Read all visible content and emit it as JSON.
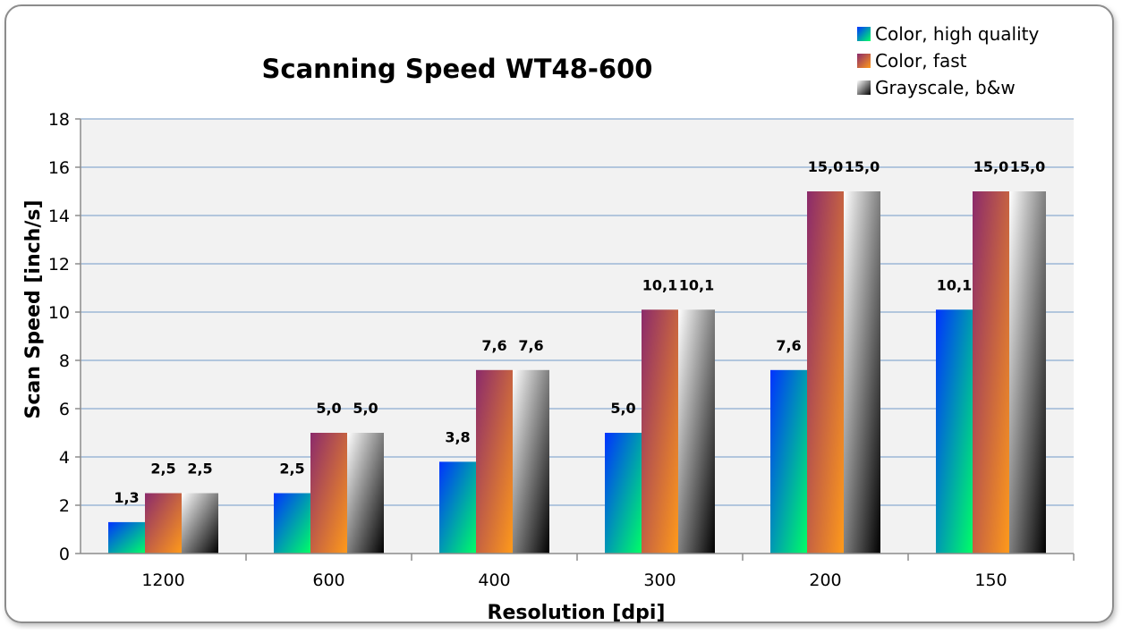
{
  "chart_data": {
    "type": "bar",
    "title": "Scanning Speed WT48-600",
    "xlabel": "Resolution [dpi]",
    "ylabel": "Scan Speed [inch/s]",
    "categories": [
      "1200",
      "600",
      "400",
      "300",
      "200",
      "150"
    ],
    "series": [
      {
        "name": "Color, high quality",
        "values": [
          1.3,
          2.5,
          3.8,
          5.0,
          7.6,
          10.1
        ],
        "labels": [
          "1,3",
          "2,5",
          "3,8",
          "5,0",
          "7,6",
          "10,1"
        ],
        "colors": [
          "#0033ff",
          "#00ff66"
        ]
      },
      {
        "name": "Color, fast",
        "values": [
          2.5,
          5.0,
          7.6,
          10.1,
          15.0,
          15.0
        ],
        "labels": [
          "2,5",
          "5,0",
          "7,6",
          "10,1",
          "15,0",
          "15,0"
        ],
        "colors": [
          "#8b2a6b",
          "#ff9a1a"
        ]
      },
      {
        "name": "Grayscale, b&w",
        "values": [
          2.5,
          5.0,
          7.6,
          10.1,
          15.0,
          15.0
        ],
        "labels": [
          "2,5",
          "5,0",
          "7,6",
          "10,1",
          "15,0",
          "15,0"
        ],
        "colors": [
          "#ffffff",
          "#000000"
        ]
      }
    ],
    "ylim": [
      0,
      18
    ],
    "yticks": [
      "0",
      "2",
      "4",
      "6",
      "8",
      "10",
      "12",
      "14",
      "16",
      "18"
    ],
    "grid": true,
    "legend_position": "top-right",
    "plot_background": "#f2f2f2",
    "gridline_color": "#9db8d6"
  }
}
